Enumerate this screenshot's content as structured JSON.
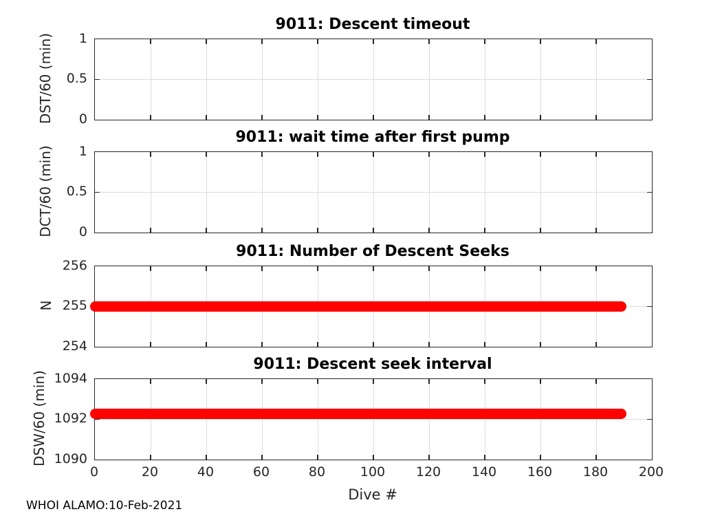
{
  "figure": {
    "footer": "WHOI ALAMO:10-Feb-2021"
  },
  "colors": {
    "line": "#ff0000",
    "grid": "#dcdcdc",
    "axis": "#262626",
    "title_text": "#000000",
    "background": "#ffffff"
  },
  "xaxis": {
    "label": "Dive #",
    "ticks": [
      "0",
      "20",
      "40",
      "60",
      "80",
      "100",
      "120",
      "140",
      "160",
      "180",
      "200"
    ]
  },
  "plots": [
    {
      "title": "9011: Descent timeout",
      "ylabel": "DST/60 (min)",
      "yticks": [
        "1",
        "0.5",
        "0"
      ]
    },
    {
      "title": "9011: wait time after first pump",
      "ylabel": "DCT/60 (min)",
      "yticks": [
        "1",
        "0.5",
        "0"
      ]
    },
    {
      "title": "9011: Number of Descent Seeks",
      "ylabel": "N",
      "yticks": [
        "256",
        "255",
        "254"
      ]
    },
    {
      "title": "9011: Descent seek interval",
      "ylabel": "DSW/60 (min)",
      "yticks": [
        "1094",
        "1092",
        "1090"
      ]
    }
  ],
  "chart_data": [
    {
      "type": "line",
      "title": "9011: Descent timeout",
      "xlabel": "Dive #",
      "ylabel": "DST/60 (min)",
      "xlim": [
        0,
        200
      ],
      "ylim": [
        0,
        1
      ],
      "xticks": [
        0,
        20,
        40,
        60,
        80,
        100,
        120,
        140,
        160,
        180,
        200
      ],
      "yticks": [
        0,
        0.5,
        1
      ],
      "grid": true,
      "series": []
    },
    {
      "type": "line",
      "title": "9011: wait time after first pump",
      "xlabel": "Dive #",
      "ylabel": "DCT/60 (min)",
      "xlim": [
        0,
        200
      ],
      "ylim": [
        0,
        1
      ],
      "xticks": [
        0,
        20,
        40,
        60,
        80,
        100,
        120,
        140,
        160,
        180,
        200
      ],
      "yticks": [
        0,
        0.5,
        1
      ],
      "grid": true,
      "series": []
    },
    {
      "type": "line",
      "title": "9011: Number of Descent Seeks",
      "xlabel": "Dive #",
      "ylabel": "N",
      "xlim": [
        0,
        200
      ],
      "ylim": [
        254,
        256
      ],
      "xticks": [
        0,
        20,
        40,
        60,
        80,
        100,
        120,
        140,
        160,
        180,
        200
      ],
      "yticks": [
        254,
        255,
        256
      ],
      "grid": true,
      "series": [
        {
          "name": "number-of-descent-seeks",
          "style": "thick-red-line",
          "x_start": 0,
          "x_end": 189,
          "y_constant": 255
        }
      ]
    },
    {
      "type": "line",
      "title": "9011: Descent seek interval",
      "xlabel": "Dive #",
      "ylabel": "DSW/60 (min)",
      "xlim": [
        0,
        200
      ],
      "ylim": [
        1090,
        1094
      ],
      "xticks": [
        0,
        20,
        40,
        60,
        80,
        100,
        120,
        140,
        160,
        180,
        200
      ],
      "yticks": [
        1090,
        1092,
        1094
      ],
      "grid": true,
      "series": [
        {
          "name": "descent-seek-interval",
          "style": "thick-red-line",
          "x_start": 0,
          "x_end": 189,
          "y_constant": 1092.27
        }
      ]
    }
  ]
}
